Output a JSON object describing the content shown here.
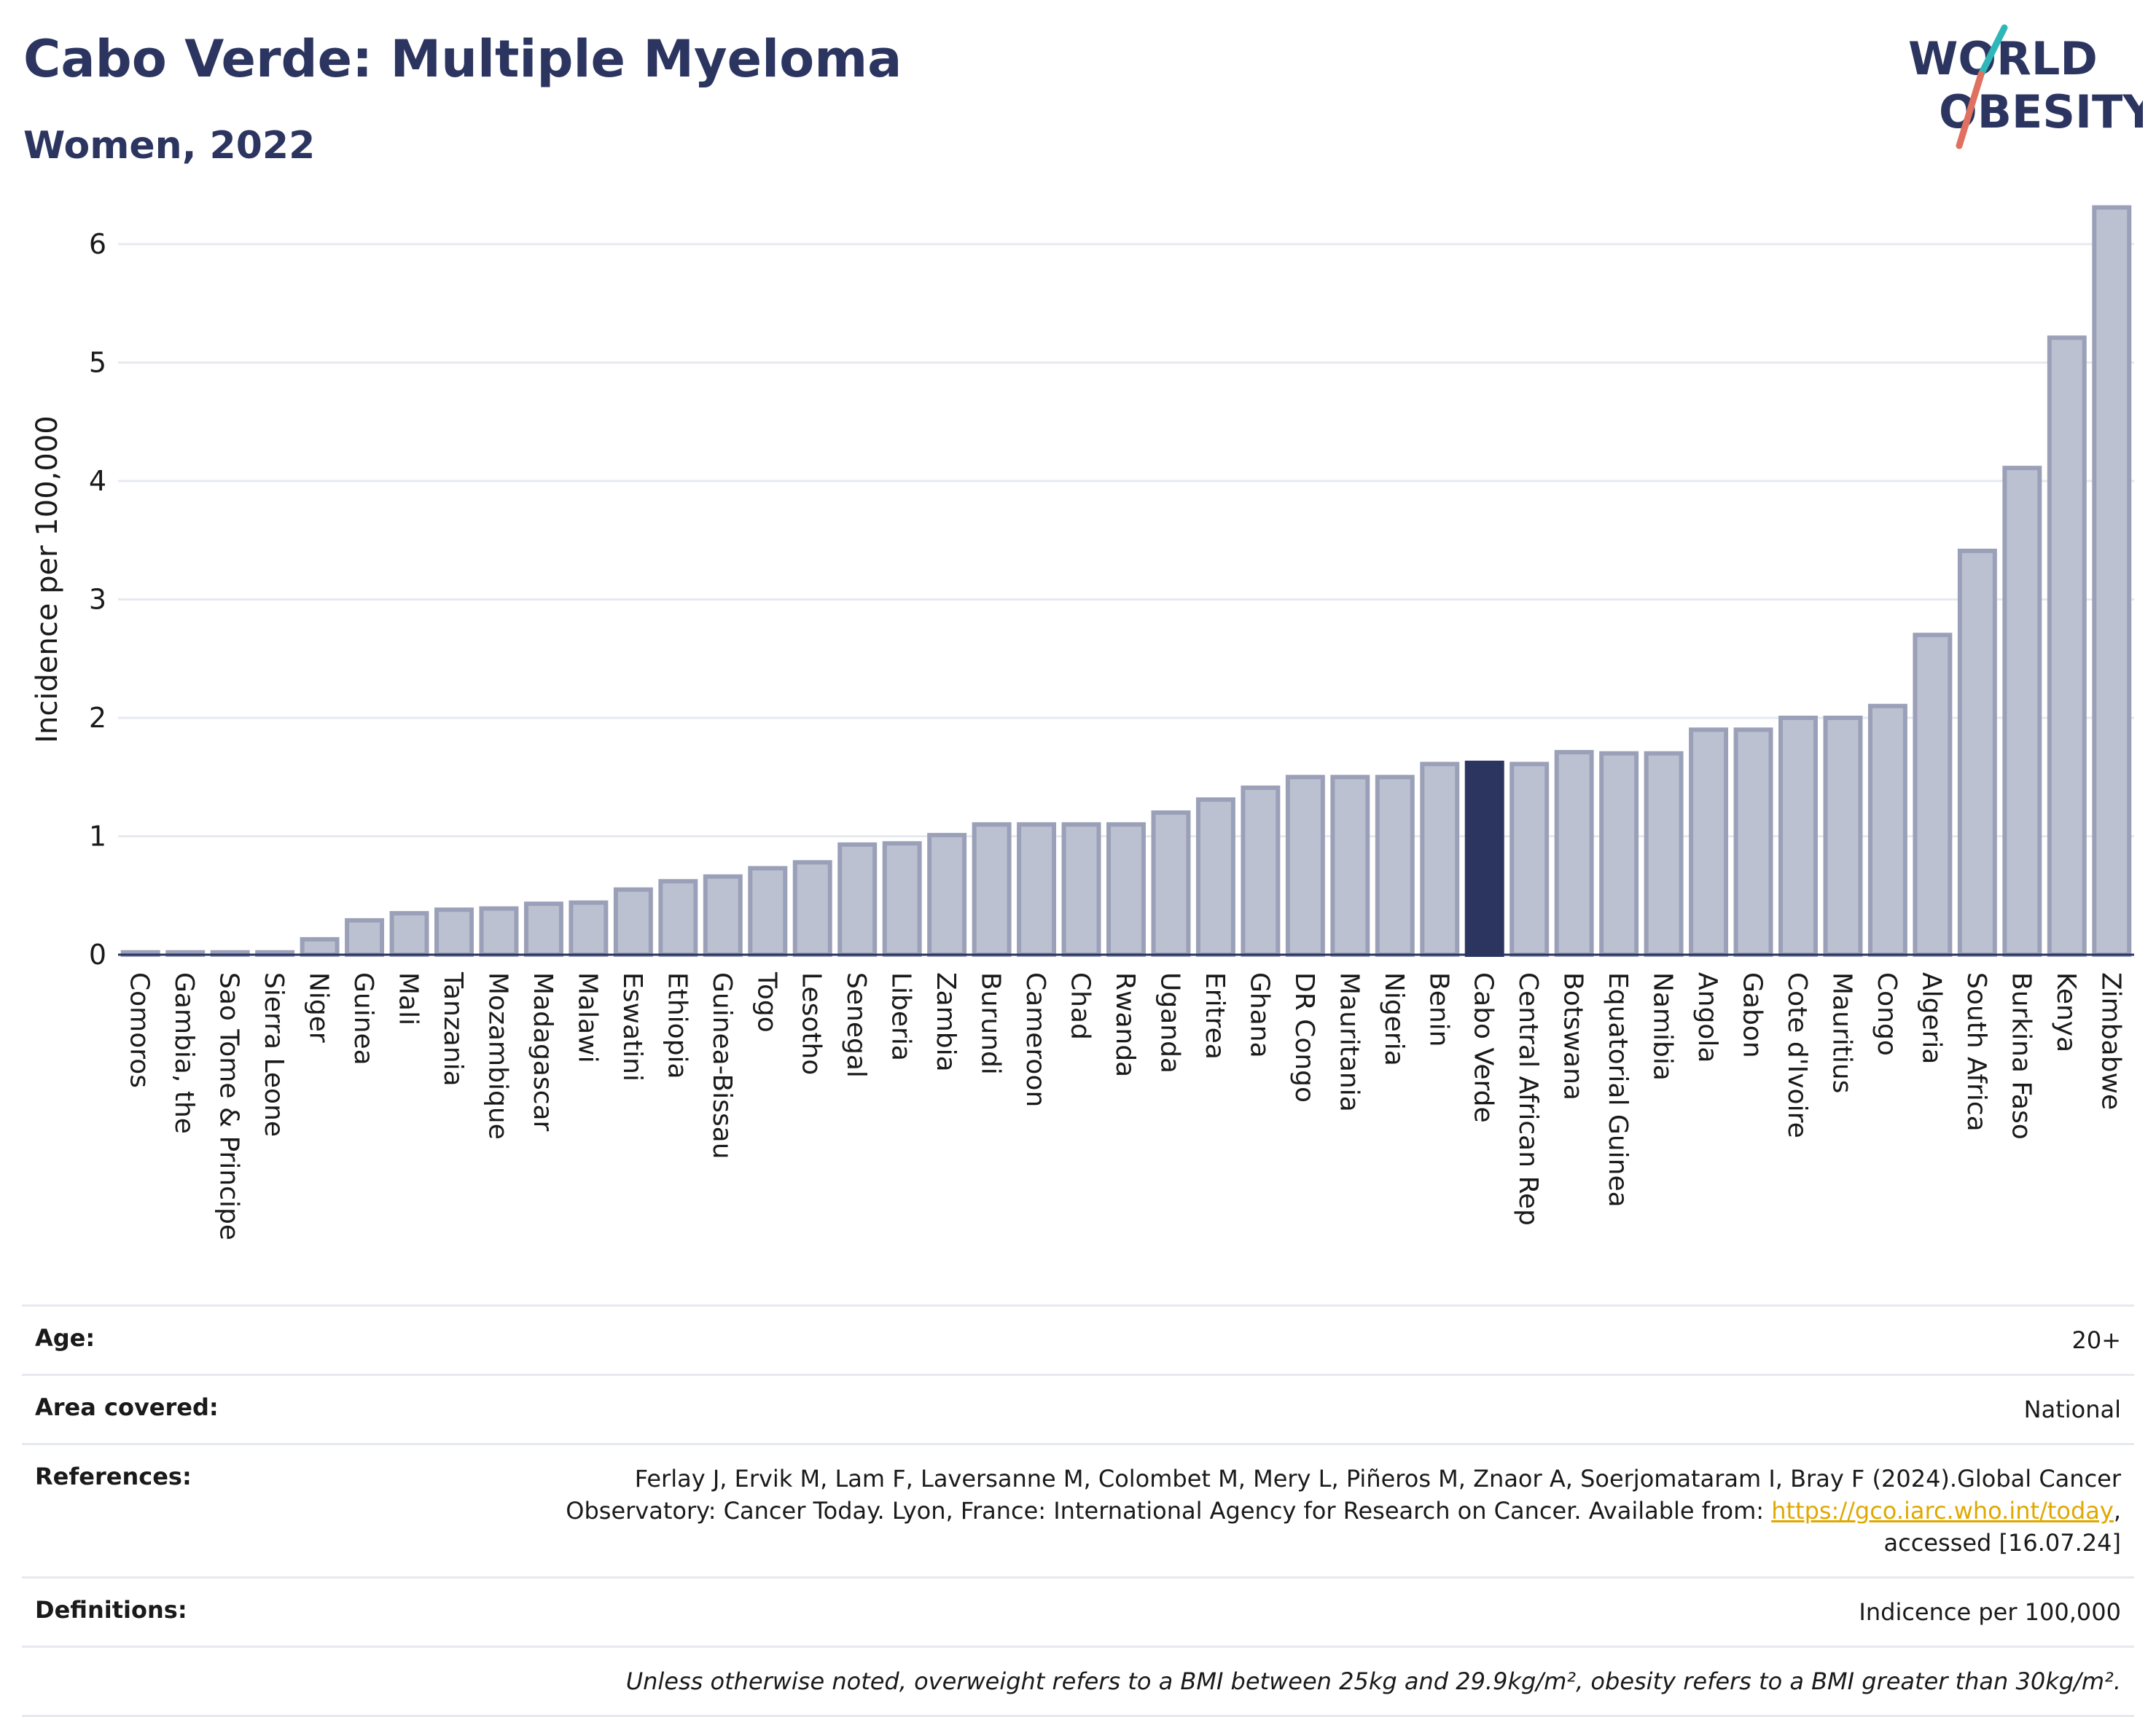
{
  "title": "Cabo Verde: Multiple Myeloma",
  "subtitle": "Women, 2022",
  "logo": {
    "line1": "WORLD",
    "line2": "OBESITY"
  },
  "colors": {
    "bar": "#bcc1d1",
    "bar_stroke": "#9aa0b8",
    "highlight": "#2b3560",
    "grid": "#e6e9f0",
    "title": "#2b3560"
  },
  "chart_data": {
    "type": "bar",
    "ylabel": "Incidence per 100,000",
    "xlabel": "",
    "ylim": [
      0,
      6.4
    ],
    "yticks": [
      0,
      1,
      2,
      3,
      4,
      5,
      6
    ],
    "grid": true,
    "highlight": "Cabo Verde",
    "categories": [
      "Comoros",
      "Gambia, the",
      "Sao Tome & Principe",
      "Sierra Leone",
      "Niger",
      "Guinea",
      "Mali",
      "Tanzania",
      "Mozambique",
      "Madagascar",
      "Malawi",
      "Eswatini",
      "Ethiopia",
      "Guinea-Bissau",
      "Togo",
      "Lesotho",
      "Senegal",
      "Liberia",
      "Zambia",
      "Burundi",
      "Cameroon",
      "Chad",
      "Rwanda",
      "Uganda",
      "Eritrea",
      "Ghana",
      "DR Congo",
      "Mauritania",
      "Nigeria",
      "Benin",
      "Cabo Verde",
      "Central African Rep",
      "Botswana",
      "Equatorial Guinea",
      "Namibia",
      "Angola",
      "Gabon",
      "Cote d'Ivoire",
      "Mauritius",
      "Congo",
      "Algeria",
      "South Africa",
      "Burkina Faso",
      "Kenya",
      "Zimbabwe"
    ],
    "values": [
      0.02,
      0.02,
      0.02,
      0.02,
      0.13,
      0.29,
      0.35,
      0.38,
      0.39,
      0.43,
      0.44,
      0.55,
      0.62,
      0.66,
      0.73,
      0.78,
      0.93,
      0.94,
      1.01,
      1.1,
      1.1,
      1.1,
      1.1,
      1.2,
      1.31,
      1.41,
      1.5,
      1.5,
      1.5,
      1.61,
      1.62,
      1.61,
      1.71,
      1.7,
      1.7,
      1.9,
      1.9,
      2.0,
      2.0,
      2.1,
      2.7,
      3.41,
      4.11,
      5.21,
      6.31
    ]
  },
  "footer": {
    "age_label": "Age:",
    "age_value": "20+",
    "area_label": "Area covered:",
    "area_value": "National",
    "ref_label": "References:",
    "ref_text_1": "Ferlay J, Ervik M, Lam F, Laversanne M, Colombet M, Mery L, Piñeros M, Znaor A, Soerjomataram I, Bray F (2024).Global Cancer",
    "ref_text_2": "Observatory: Cancer Today. Lyon, France: International Agency for Research on Cancer. Available from: ",
    "ref_link": "https://gco.iarc.who.int/today",
    "ref_text_3": ",",
    "ref_text_4": "accessed [16.07.24]",
    "def_label": "Definitions:",
    "def_value": "Indicence per 100,000",
    "note": "Unless otherwise noted, overweight refers to a BMI between 25kg and 29.9kg/m², obesity refers to a BMI greater than 30kg/m²."
  }
}
